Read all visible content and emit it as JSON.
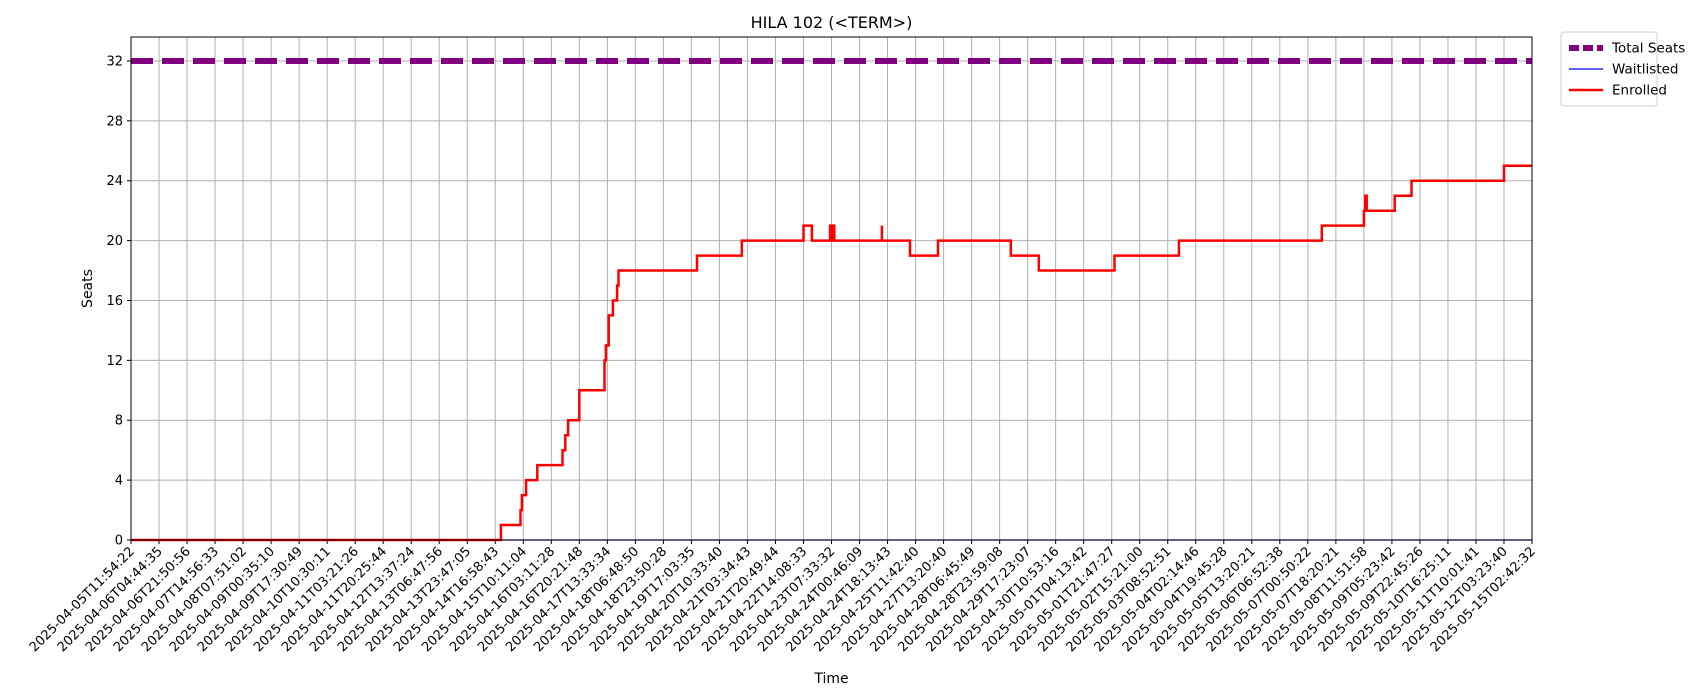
{
  "chart_data": {
    "type": "line",
    "title": "HILA 102 (<TERM>)",
    "xlabel": "Time",
    "ylabel": "Seats",
    "ylim": [
      0,
      33.6
    ],
    "yticks": [
      0,
      4,
      8,
      12,
      16,
      20,
      24,
      28,
      32
    ],
    "grid": true,
    "legend": "outside-top-right",
    "x_categories": [
      "2025-04-05T11:54:22",
      "2025-04-06T04:44:35",
      "2025-04-06T21:50:56",
      "2025-04-07T14:56:33",
      "2025-04-08T07:51:02",
      "2025-04-09T00:35:10",
      "2025-04-09T17:30:49",
      "2025-04-10T10:30:11",
      "2025-04-11T03:21:26",
      "2025-04-11T20:25:44",
      "2025-04-12T13:37:24",
      "2025-04-13T06:47:56",
      "2025-04-13T23:47:05",
      "2025-04-14T16:58:43",
      "2025-04-15T10:11:04",
      "2025-04-16T03:11:28",
      "2025-04-16T20:21:48",
      "2025-04-17T13:33:34",
      "2025-04-18T06:48:50",
      "2025-04-18T23:50:28",
      "2025-04-19T17:03:35",
      "2025-04-20T10:33:40",
      "2025-04-21T03:34:43",
      "2025-04-21T20:49:44",
      "2025-04-22T14:08:33",
      "2025-04-23T07:33:32",
      "2025-04-24T00:46:09",
      "2025-04-24T18:13:43",
      "2025-04-25T11:42:40",
      "2025-04-27T13:20:40",
      "2025-04-28T06:45:49",
      "2025-04-28T23:59:08",
      "2025-04-29T17:23:07",
      "2025-04-30T10:53:16",
      "2025-05-01T04:13:42",
      "2025-05-01T21:47:27",
      "2025-05-02T15:21:00",
      "2025-05-03T08:52:51",
      "2025-05-04T02:14:46",
      "2025-05-04T19:45:28",
      "2025-05-05T13:20:21",
      "2025-05-06T06:52:38",
      "2025-05-07T00:50:22",
      "2025-05-07T18:20:21",
      "2025-05-08T11:51:58",
      "2025-05-09T05:23:42",
      "2025-05-09T22:45:26",
      "2025-05-10T16:25:11",
      "2025-05-11T10:01:41",
      "2025-05-12T03:23:40",
      "2025-05-15T02:42:32"
    ],
    "series": [
      {
        "name": "Total Seats",
        "color": "#800080",
        "style": "dashed-thick",
        "points": [
          [
            0,
            32
          ],
          [
            50,
            32
          ]
        ]
      },
      {
        "name": "Waitlisted",
        "color": "#0000ff",
        "style": "solid-thin",
        "points": [
          [
            0,
            0
          ],
          [
            50,
            0
          ]
        ]
      },
      {
        "name": "Enrolled",
        "color": "#ff0000",
        "style": "step",
        "points": [
          [
            0,
            0
          ],
          [
            13.2,
            0
          ],
          [
            13.2,
            1
          ],
          [
            13.9,
            1
          ],
          [
            13.9,
            2
          ],
          [
            13.95,
            2
          ],
          [
            13.95,
            3
          ],
          [
            14.1,
            3
          ],
          [
            14.1,
            4
          ],
          [
            14.5,
            4
          ],
          [
            14.5,
            5
          ],
          [
            15.4,
            5
          ],
          [
            15.4,
            6
          ],
          [
            15.5,
            6
          ],
          [
            15.5,
            7
          ],
          [
            15.6,
            7
          ],
          [
            15.6,
            8
          ],
          [
            16.0,
            8
          ],
          [
            16.0,
            10
          ],
          [
            16.9,
            10
          ],
          [
            16.9,
            12
          ],
          [
            16.95,
            12
          ],
          [
            16.95,
            13
          ],
          [
            17.05,
            13
          ],
          [
            17.05,
            15
          ],
          [
            17.2,
            15
          ],
          [
            17.2,
            16
          ],
          [
            17.35,
            16
          ],
          [
            17.35,
            17
          ],
          [
            17.4,
            17
          ],
          [
            17.4,
            18
          ],
          [
            20.2,
            18
          ],
          [
            20.2,
            19
          ],
          [
            21.8,
            19
          ],
          [
            21.8,
            20
          ],
          [
            24.0,
            20
          ],
          [
            24.0,
            21
          ],
          [
            24.3,
            21
          ],
          [
            24.3,
            20
          ],
          [
            24.95,
            20
          ],
          [
            24.95,
            21
          ],
          [
            25.0,
            21
          ],
          [
            25.0,
            20
          ],
          [
            25.05,
            20
          ],
          [
            25.05,
            21
          ],
          [
            25.1,
            21
          ],
          [
            25.1,
            20
          ],
          [
            26.8,
            20
          ],
          [
            26.8,
            21
          ],
          [
            26.8,
            20
          ],
          [
            27.8,
            20
          ],
          [
            27.8,
            19
          ],
          [
            28.8,
            19
          ],
          [
            28.8,
            20
          ],
          [
            31.4,
            20
          ],
          [
            31.4,
            19
          ],
          [
            32.4,
            19
          ],
          [
            32.4,
            18
          ],
          [
            35.1,
            18
          ],
          [
            35.1,
            19
          ],
          [
            37.4,
            19
          ],
          [
            37.4,
            20
          ],
          [
            42.5,
            20
          ],
          [
            42.5,
            21
          ],
          [
            44.0,
            21
          ],
          [
            44.0,
            22
          ],
          [
            44.05,
            22
          ],
          [
            44.05,
            23
          ],
          [
            44.1,
            23
          ],
          [
            44.1,
            22
          ],
          [
            45.1,
            22
          ],
          [
            45.1,
            23
          ],
          [
            45.7,
            23
          ],
          [
            45.7,
            24
          ],
          [
            49.0,
            24
          ],
          [
            49.0,
            25
          ],
          [
            50,
            25
          ]
        ]
      }
    ]
  }
}
